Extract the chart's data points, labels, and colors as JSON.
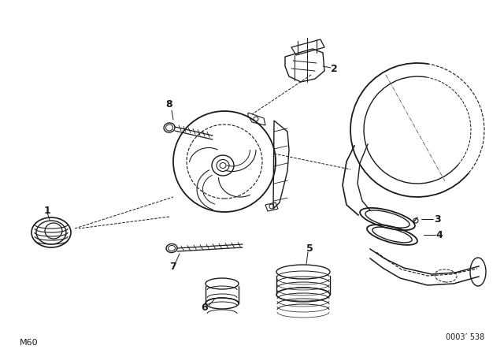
{
  "background_color": "#ffffff",
  "text_color": "#000000",
  "bottom_left_label": "M60",
  "bottom_right_label": "0003’ 538",
  "line_color": "#1a1a1a",
  "lw": 1.0,
  "figsize": [
    6.4,
    4.48
  ],
  "dpi": 100
}
